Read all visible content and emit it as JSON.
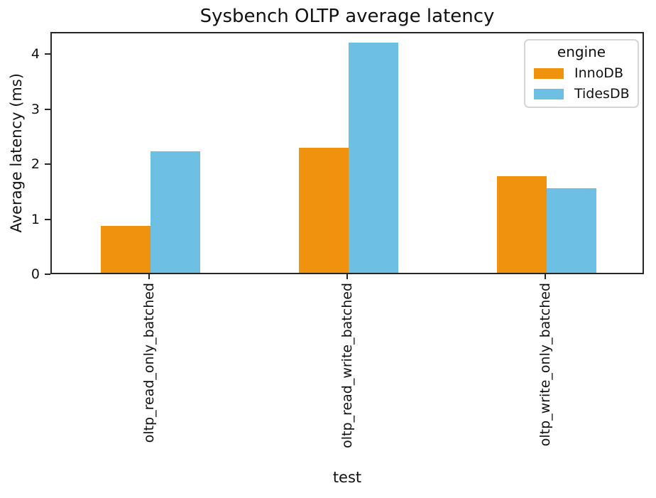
{
  "chart_data": {
    "type": "bar",
    "title": "Sysbench OLTP average latency",
    "xlabel": "test",
    "ylabel": "Average latency (ms)",
    "legend_title": "engine",
    "legend_position": "upper right",
    "grid": false,
    "categories": [
      "oltp_read_only_batched",
      "oltp_read_write_batched",
      "oltp_write_only_batched"
    ],
    "series": [
      {
        "name": "InnoDB",
        "color": "#f0920e",
        "values": [
          0.85,
          2.27,
          1.76
        ]
      },
      {
        "name": "TidesDB",
        "color": "#6dc0e4",
        "values": [
          2.21,
          4.18,
          1.53
        ]
      }
    ],
    "yticks": [
      0,
      1,
      2,
      3,
      4
    ],
    "ylim": [
      0,
      4.4
    ]
  }
}
